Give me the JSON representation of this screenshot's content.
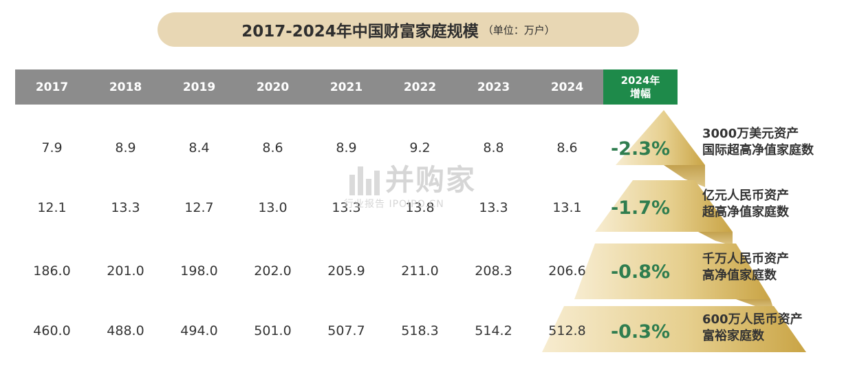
{
  "title": {
    "main": "2017-2024年中国财富家庭规模",
    "unit": "（单位：万户）"
  },
  "watermark": {
    "brand": "并购家",
    "sub": "行业报告 IPOIPO.CN"
  },
  "growth_header": {
    "line1": "2024年",
    "line2": "增幅"
  },
  "colors": {
    "header_gray": "#8c8c8c",
    "growth_green": "#1e8a4a",
    "pill_gold": "#e8d7b4",
    "pyramid_gold": "#d9b85c"
  },
  "chart_data": {
    "type": "table",
    "columns": [
      "2017",
      "2018",
      "2019",
      "2020",
      "2021",
      "2022",
      "2023",
      "2024"
    ],
    "rows": [
      {
        "values": [
          "7.9",
          "8.9",
          "8.4",
          "8.6",
          "8.9",
          "9.2",
          "8.8",
          "8.6"
        ],
        "growth": "-2.3%",
        "label_line1": "3000万美元资产",
        "label_line2": "国际超高净值家庭数"
      },
      {
        "values": [
          "12.1",
          "13.3",
          "12.7",
          "13.0",
          "13.3",
          "13.8",
          "13.3",
          "13.1"
        ],
        "growth": "-1.7%",
        "label_line1": "亿元人民币资产",
        "label_line2": "超高净值家庭数"
      },
      {
        "values": [
          "186.0",
          "201.0",
          "198.0",
          "202.0",
          "205.9",
          "211.0",
          "208.3",
          "206.6"
        ],
        "growth": "-0.8%",
        "label_line1": "千万人民币资产",
        "label_line2": "高净值家庭数"
      },
      {
        "values": [
          "460.0",
          "488.0",
          "494.0",
          "501.0",
          "507.7",
          "518.3",
          "514.2",
          "512.8"
        ],
        "growth": "-0.3%",
        "label_line1": "600万人民币资产",
        "label_line2": "富裕家庭数"
      }
    ]
  }
}
